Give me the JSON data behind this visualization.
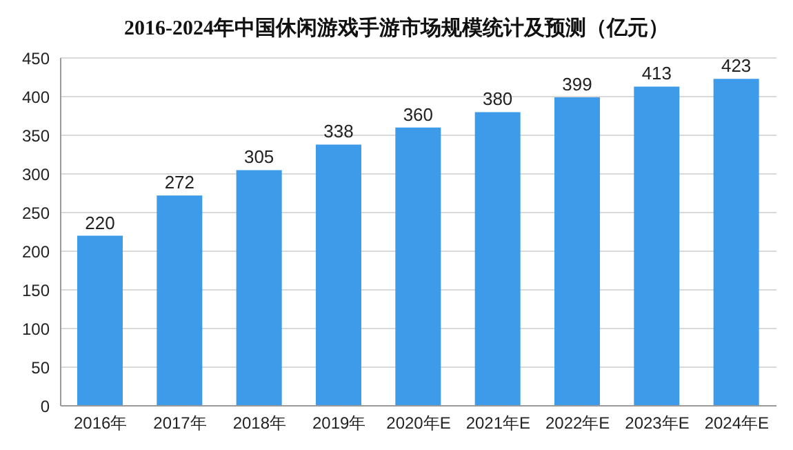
{
  "chart_data": {
    "type": "bar",
    "title": "2016-2024年中国休闲游戏手游市场规模统计及预测（亿元）",
    "categories": [
      "2016年",
      "2017年",
      "2018年",
      "2019年",
      "2020年E",
      "2021年E",
      "2022年E",
      "2023年E",
      "2024年E"
    ],
    "values": [
      220,
      272,
      305,
      338,
      360,
      380,
      399,
      413,
      423
    ],
    "color": "#3d9be9",
    "ylim": [
      0,
      450
    ],
    "yticks": [
      0,
      50,
      100,
      150,
      200,
      250,
      300,
      350,
      400,
      450
    ],
    "grid": "y",
    "data_labels": true
  }
}
